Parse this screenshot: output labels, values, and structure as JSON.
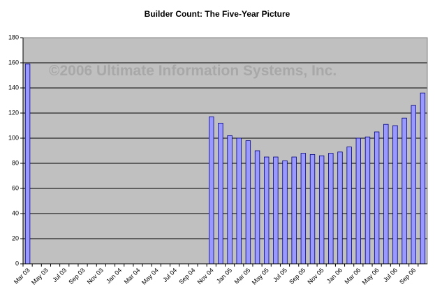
{
  "chart_data": {
    "type": "bar",
    "title": "Builder Count: The Five-Year Picture",
    "annotation": "©2006 Ultimate Information Systems, Inc.",
    "categories": [
      "Mar 03",
      null,
      "May 03",
      null,
      "Jul 03",
      null,
      "Sep 03",
      null,
      "Nov 03",
      null,
      "Jan 04",
      null,
      "Mar 04",
      null,
      "May 04",
      null,
      "Jul 04",
      null,
      "Sep 04",
      null,
      "Nov 04",
      null,
      "Jan 05",
      null,
      "Mar 05",
      null,
      "May 05",
      null,
      "Jul 05",
      null,
      "Sep 05",
      null,
      "Nov 05",
      null,
      "Jan 06",
      null,
      "Mar 06",
      null,
      "May 06",
      null,
      "Jul 06",
      null,
      "Sep 06",
      null
    ],
    "values": [
      159,
      null,
      null,
      null,
      null,
      null,
      null,
      null,
      null,
      null,
      null,
      null,
      null,
      null,
      null,
      null,
      null,
      null,
      null,
      null,
      117,
      112,
      102,
      100,
      98,
      90,
      85,
      85,
      82,
      85,
      88,
      87,
      86,
      88,
      89,
      93,
      100,
      101,
      105,
      111,
      110,
      116,
      126,
      136
    ],
    "color": "#9999ff",
    "edge_color": "#000080",
    "background": "#c0c0c0",
    "ylim": [
      0,
      180
    ],
    "yticks": [
      0,
      20,
      40,
      60,
      80,
      100,
      120,
      140,
      160,
      180
    ],
    "grid": true
  }
}
